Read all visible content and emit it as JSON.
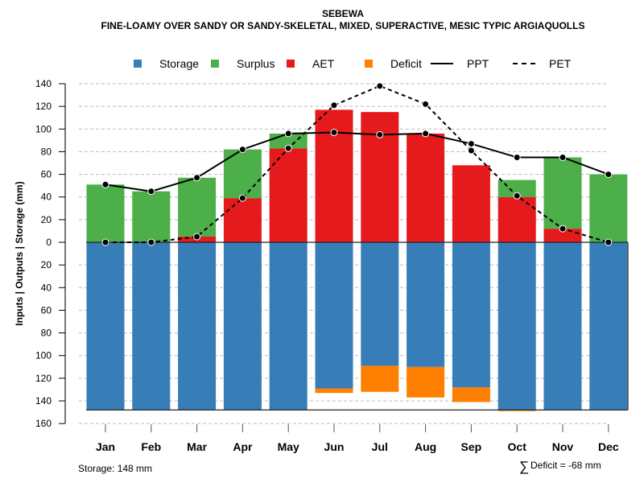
{
  "chart_data": {
    "type": "bar",
    "title": "SEBEWA",
    "subtitle": "FINE-LOAMY OVER SANDY OR SANDY-SKELETAL, MIXED, SUPERACTIVE, MESIC TYPIC ARGIAQUOLLS",
    "ylabel": "Inputs | Outputs | Storage    (mm)",
    "ylim": [
      -160,
      140
    ],
    "yticks": [
      140,
      120,
      100,
      80,
      60,
      40,
      20,
      0,
      -20,
      -40,
      -60,
      -80,
      -100,
      -120,
      -140,
      -160
    ],
    "ytick_labels": [
      "140",
      "120",
      "100",
      "80",
      "60",
      "40",
      "20",
      "0",
      "20",
      "40",
      "60",
      "80",
      "100",
      "120",
      "140",
      "160"
    ],
    "grid": true,
    "legend_position": "top",
    "legend": [
      {
        "label": "Storage",
        "kind": "box",
        "color": "#377EB8"
      },
      {
        "label": "Surplus",
        "kind": "box",
        "color": "#4DAF4A"
      },
      {
        "label": "AET",
        "kind": "box",
        "color": "#E41A1C"
      },
      {
        "label": "Deficit",
        "kind": "box",
        "color": "#FF7F00"
      },
      {
        "label": "PPT",
        "kind": "solid-line",
        "color": "#000000"
      },
      {
        "label": "PET",
        "kind": "dashed-line",
        "color": "#000000"
      }
    ],
    "categories": [
      "Jan",
      "Feb",
      "Mar",
      "Apr",
      "May",
      "Jun",
      "Jul",
      "Aug",
      "Sep",
      "Oct",
      "Nov",
      "Dec"
    ],
    "series": [
      {
        "name": "Storage",
        "color": "#377EB8",
        "values": [
          148,
          148,
          148,
          148,
          148,
          129,
          109,
          110,
          128,
          148,
          148,
          148
        ]
      },
      {
        "name": "Deficit",
        "color": "#FF7F00",
        "values": [
          0,
          0,
          0,
          0,
          0,
          4,
          23,
          27,
          13,
          1,
          0,
          0
        ]
      },
      {
        "name": "AET",
        "color": "#E41A1C",
        "values": [
          0,
          0,
          5,
          39,
          83,
          117,
          115,
          96,
          68,
          40,
          12,
          0
        ]
      },
      {
        "name": "Surplus",
        "color": "#4DAF4A",
        "values": [
          51,
          45,
          52,
          43,
          13,
          0,
          0,
          0,
          0,
          15,
          63,
          60
        ]
      },
      {
        "name": "PPT",
        "color": "#000000",
        "values": [
          51,
          45,
          57,
          82,
          96,
          97,
          95,
          96,
          87,
          75,
          75,
          60
        ]
      },
      {
        "name": "PET",
        "color": "#000000",
        "values": [
          0,
          0,
          5,
          39,
          83,
          121,
          138,
          122,
          81,
          41,
          12,
          0
        ]
      }
    ],
    "storage_capacity": 148,
    "annotations": {
      "storage": "Storage: 148 mm",
      "deficit_sum": "Deficit = -68 mm",
      "deficit_symbol": "∑"
    }
  }
}
